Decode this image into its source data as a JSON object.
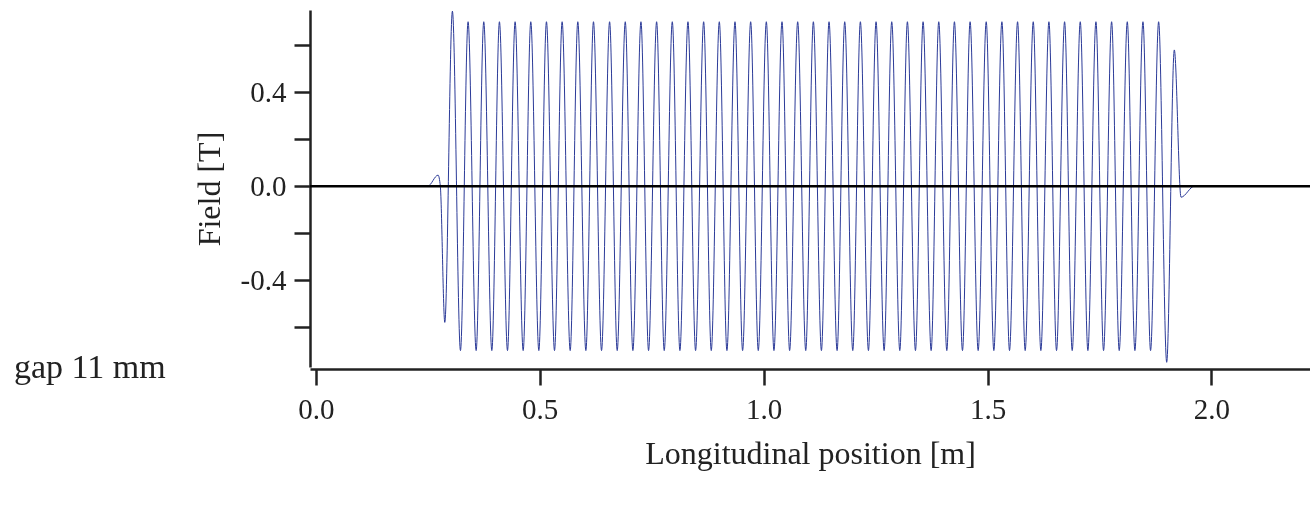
{
  "chart_data": {
    "type": "line",
    "xlabel": "Longitudinal position [m]",
    "ylabel": "Field [T]",
    "annotations": [
      "gap 11 mm"
    ],
    "xlim": [
      -0.013,
      2.22
    ],
    "xticks": [
      {
        "value": 0,
        "label": "0.0"
      },
      0.5,
      {
        "value": 1,
        "label": "1.0"
      },
      1.5,
      {
        "value": 2,
        "label": "2.0"
      }
    ],
    "ylim": [
      -0.77,
      0.75
    ],
    "yticks": [
      {
        "value": -0.6,
        "label": null
      },
      -0.4,
      {
        "value": -0.2,
        "label": null
      },
      {
        "value": 0,
        "label": "0.0"
      },
      {
        "value": 0.2,
        "label": null
      },
      0.4,
      {
        "value": 0.6,
        "label": null
      }
    ],
    "grid": false,
    "marker": "none",
    "line_style": "solid",
    "ref_lines": [
      {
        "axis": "y",
        "value": 0,
        "color": "#000000"
      }
    ],
    "series": [
      {
        "color": "#2b3a98",
        "x": [
          0,
          0.25,
          0.273,
          0.278,
          0.288,
          0.305,
          0.323,
          0.34,
          0.358,
          0.375,
          0.393,
          0.41,
          0.428,
          0.445,
          0.463,
          0.48,
          0.498,
          0.515,
          0.533,
          0.55,
          0.568,
          0.585,
          0.603,
          0.62,
          0.638,
          0.656,
          0.673,
          0.691,
          0.708,
          0.726,
          0.743,
          0.761,
          0.778,
          0.796,
          0.813,
          0.831,
          0.848,
          0.866,
          0.883,
          0.901,
          0.918,
          0.936,
          0.953,
          0.971,
          0.988,
          1.006,
          1.023,
          1.041,
          1.058,
          1.076,
          1.094,
          1.111,
          1.129,
          1.146,
          1.164,
          1.181,
          1.199,
          1.216,
          1.234,
          1.251,
          1.269,
          1.286,
          1.304,
          1.321,
          1.339,
          1.356,
          1.374,
          1.391,
          1.409,
          1.426,
          1.444,
          1.461,
          1.479,
          1.497,
          1.514,
          1.532,
          1.549,
          1.567,
          1.584,
          1.602,
          1.619,
          1.637,
          1.654,
          1.672,
          1.689,
          1.707,
          1.724,
          1.742,
          1.759,
          1.777,
          1.794,
          1.812,
          1.829,
          1.847,
          1.864,
          1.882,
          1.9,
          1.917,
          1.932,
          1.962,
          2.22
        ],
        "values": [
          0,
          0,
          0.047,
          0,
          -0.58,
          0.745,
          -0.7,
          0.7,
          -0.7,
          0.7,
          -0.7,
          0.7,
          -0.7,
          0.7,
          -0.7,
          0.7,
          -0.7,
          0.7,
          -0.7,
          0.7,
          -0.7,
          0.7,
          -0.7,
          0.7,
          -0.7,
          0.7,
          -0.7,
          0.7,
          -0.7,
          0.7,
          -0.7,
          0.7,
          -0.7,
          0.7,
          -0.7,
          0.7,
          -0.7,
          0.7,
          -0.7,
          0.7,
          -0.7,
          0.7,
          -0.7,
          0.7,
          -0.7,
          0.7,
          -0.7,
          0.7,
          -0.7,
          0.7,
          -0.7,
          0.7,
          -0.7,
          0.7,
          -0.7,
          0.7,
          -0.7,
          0.7,
          -0.7,
          0.7,
          -0.7,
          0.7,
          -0.7,
          0.7,
          -0.7,
          0.7,
          -0.7,
          0.7,
          -0.7,
          0.7,
          -0.7,
          0.7,
          -0.7,
          0.7,
          -0.7,
          0.7,
          -0.7,
          0.7,
          -0.7,
          0.7,
          -0.7,
          0.7,
          -0.7,
          0.7,
          -0.7,
          0.7,
          -0.7,
          0.7,
          -0.7,
          0.7,
          -0.7,
          0.7,
          -0.7,
          0.7,
          -0.7,
          0.7,
          -0.75,
          0.58,
          -0.047,
          0,
          0
        ]
      }
    ]
  }
}
